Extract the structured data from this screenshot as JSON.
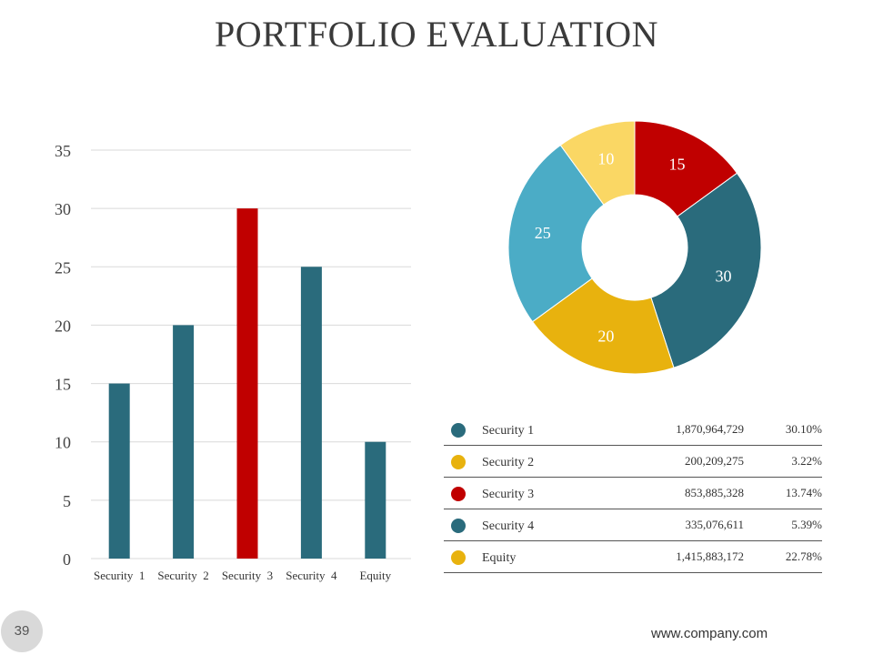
{
  "title": "PORTFOLIO EVALUATION",
  "chart_data": [
    {
      "type": "bar",
      "categories": [
        "Security  1",
        "Security  2",
        "Security  3",
        "Security  4",
        "Equity"
      ],
      "values": [
        15,
        20,
        30,
        25,
        10
      ],
      "colors": [
        "#2a6b7c",
        "#2a6b7c",
        "#c00000",
        "#2a6b7c",
        "#2a6b7c"
      ],
      "yticks": [
        "0",
        "5",
        "10",
        "15",
        "20",
        "25",
        "30",
        "35"
      ],
      "ylim": [
        0,
        35
      ],
      "grid": true,
      "title": "",
      "xlabel": "",
      "ylabel": ""
    },
    {
      "type": "pie",
      "donut": true,
      "values": [
        15,
        30,
        20,
        25,
        10
      ],
      "labels": [
        "15",
        "30",
        "20",
        "25",
        "10"
      ],
      "colors": [
        "#c00000",
        "#2a6b7c",
        "#e8b20e",
        "#4bacc6",
        "#fad764"
      ]
    }
  ],
  "legend_table": [
    {
      "name": "Security  1",
      "value": "1,870,964,729",
      "percent": "30.10%",
      "color": "#2a6b7c"
    },
    {
      "name": "Security  2",
      "value": "200,209,275",
      "percent": "3.22%",
      "color": "#e8b20e"
    },
    {
      "name": "Security  3",
      "value": "853,885,328",
      "percent": "13.74%",
      "color": "#c00000"
    },
    {
      "name": "Security  4",
      "value": "335,076,611",
      "percent": "5.39%",
      "color": "#2a6b7c"
    },
    {
      "name": "Equity",
      "value": "1,415,883,172",
      "percent": "22.78%",
      "color": "#e8b20e"
    }
  ],
  "page_number": "39",
  "footer_url": "www.company.com"
}
